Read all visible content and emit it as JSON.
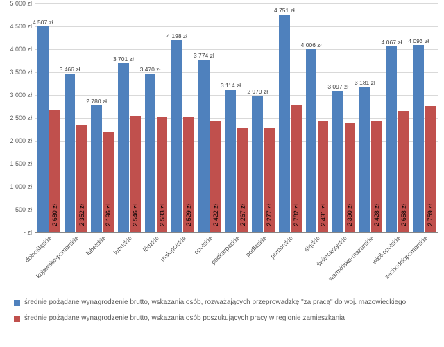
{
  "chart": {
    "type": "bar",
    "y_axis": {
      "min": 0,
      "max": 5000,
      "step": 500,
      "suffix": " zł",
      "zero_label": "-   zł"
    },
    "colors": {
      "series_blue": "#4f81bd",
      "series_red": "#c0504d",
      "grid": "#d9d9d9",
      "text": "#595959"
    },
    "categories": [
      "dolnośląskie",
      "kujawsko-pomorskie",
      "lubelskie",
      "lubuskie",
      "łódzkie",
      "małopolskie",
      "opolskie",
      "podkarpackie",
      "podlaskie",
      "pomorskie",
      "śląskie",
      "świętokrzyskie",
      "warmińsko-mazurskie",
      "wielkopolskie",
      "zachodniopomorskie"
    ],
    "series": [
      {
        "name": "blue",
        "label": "średnie pożądane wynagrodzenie brutto, wskazania osób, rozważających przeprowadzkę \"za pracą\" do woj. mazowieckiego",
        "values": [
          4507,
          3466,
          2780,
          3701,
          3470,
          4198,
          3774,
          3114,
          2979,
          4751,
          4006,
          3097,
          3181,
          4067,
          4093
        ]
      },
      {
        "name": "red",
        "label": "średnie pożądane wynagrodzenie brutto, wskazania osób poszukujących pracy w regionie zamieszkania",
        "values": [
          2680,
          2352,
          2196,
          2546,
          2533,
          2529,
          2422,
          2267,
          2277,
          2782,
          2431,
          2390,
          2428,
          2658,
          2759
        ]
      }
    ],
    "value_label_suffix": " zł"
  }
}
